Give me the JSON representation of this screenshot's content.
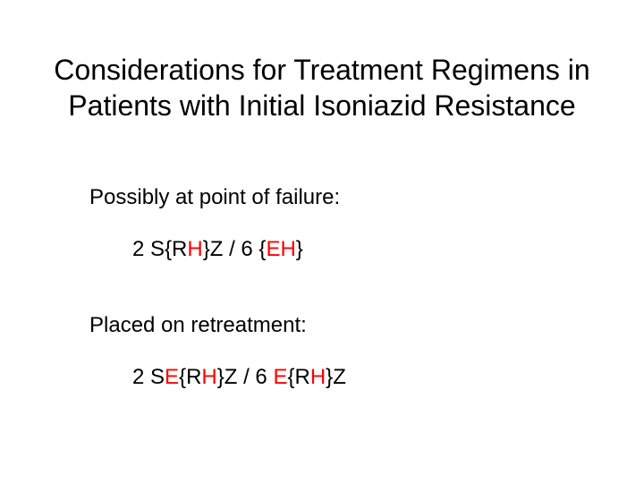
{
  "slide": {
    "background_color": "#ffffff",
    "text_color": "#000000",
    "highlight_color": "#ff0000",
    "title_fontsize": 32,
    "body_fontsize": 24,
    "font_family": "Arial",
    "title_line1": "Considerations for Treatment Regimens in",
    "title_line2": "Patients with Initial Isoniazid Resistance",
    "section1_heading": "Possibly at point of failure:",
    "section2_heading": "Placed on retreatment:",
    "regimen1": {
      "p1": "2 S{R",
      "h1": "H",
      "p2": "}Z / 6 {",
      "h2": "EH",
      "p3": "}"
    },
    "regimen2": {
      "p1": "2 S",
      "h1": "E",
      "p2": "{R",
      "h2": "H",
      "p3": "}Z / 6 ",
      "h3": "E",
      "p4": "{R",
      "h4": "H",
      "p5": "}Z"
    }
  }
}
